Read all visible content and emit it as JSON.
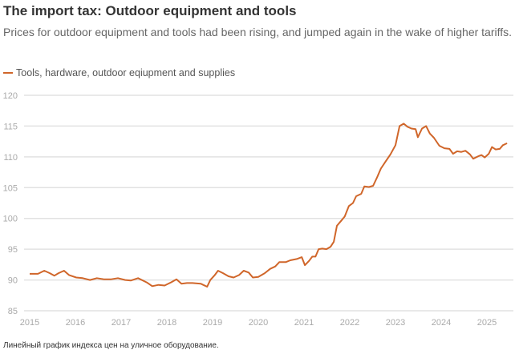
{
  "title": "The import tax: Outdoor equipment and tools",
  "subtitle": "Prices for outdoor equipment and tools had been rising, and jumped again in the wake of higher tariffs.",
  "footnote": "Линейный график индекса цен на уличное оборудование.",
  "colors": {
    "line": "#d0662a",
    "grid": "#e2e2e2",
    "tick": "#aaaaaa"
  },
  "chart_data": {
    "type": "line",
    "title": "The import tax: Outdoor equipment and tools",
    "xlabel": "",
    "ylabel": "",
    "ylim": [
      85,
      120
    ],
    "xlim": [
      2015,
      2025.5
    ],
    "yticks": [
      "85",
      "90",
      "95",
      "100",
      "105",
      "110",
      "115",
      "120"
    ],
    "xticks": [
      "2015",
      "2016",
      "2017",
      "2018",
      "2019",
      "2020",
      "2021",
      "2022",
      "2023",
      "2024",
      "2025"
    ],
    "grid": true,
    "legend_position": "top-left",
    "series": [
      {
        "name": "Tools, hardware, outdoor eqiupment and supplies",
        "x": [
          2015.0,
          2015.18,
          2015.32,
          2015.44,
          2015.54,
          2015.63,
          2015.75,
          2015.86,
          2016.02,
          2016.16,
          2016.32,
          2016.47,
          2016.63,
          2016.77,
          2016.93,
          2017.09,
          2017.21,
          2017.37,
          2017.56,
          2017.68,
          2017.82,
          2017.95,
          2018.09,
          2018.21,
          2018.32,
          2018.44,
          2018.56,
          2018.74,
          2018.88,
          2018.95,
          2019.05,
          2019.12,
          2019.23,
          2019.35,
          2019.46,
          2019.58,
          2019.68,
          2019.79,
          2019.88,
          2020.0,
          2020.14,
          2020.26,
          2020.37,
          2020.46,
          2020.6,
          2020.7,
          2020.84,
          2020.95,
          2021.02,
          2021.11,
          2021.18,
          2021.25,
          2021.32,
          2021.4,
          2021.49,
          2021.58,
          2021.65,
          2021.72,
          2021.81,
          2021.89,
          2021.98,
          2022.07,
          2022.14,
          2022.25,
          2022.32,
          2022.42,
          2022.51,
          2022.6,
          2022.68,
          2022.79,
          2022.89,
          2023.0,
          2023.09,
          2023.18,
          2023.26,
          2023.35,
          2023.44,
          2023.49,
          2023.58,
          2023.67,
          2023.75,
          2023.84,
          2023.96,
          2024.07,
          2024.18,
          2024.26,
          2024.35,
          2024.44,
          2024.53,
          2024.63,
          2024.7,
          2024.81,
          2024.88,
          2024.95,
          2025.04,
          2025.11,
          2025.19,
          2025.28,
          2025.35,
          2025.44
        ],
        "values": [
          91.0,
          91.0,
          91.5,
          91.1,
          90.7,
          91.1,
          91.5,
          90.8,
          90.4,
          90.3,
          90.0,
          90.3,
          90.1,
          90.1,
          90.3,
          90.0,
          89.9,
          90.3,
          89.6,
          89.0,
          89.2,
          89.1,
          89.6,
          90.1,
          89.4,
          89.5,
          89.5,
          89.4,
          88.9,
          90.0,
          90.8,
          91.5,
          91.1,
          90.6,
          90.4,
          90.8,
          91.5,
          91.2,
          90.4,
          90.5,
          91.1,
          91.8,
          92.2,
          92.9,
          92.9,
          93.2,
          93.4,
          93.7,
          92.4,
          93.1,
          93.8,
          93.8,
          95.0,
          95.1,
          95.0,
          95.4,
          96.2,
          98.8,
          99.6,
          100.3,
          102.0,
          102.5,
          103.6,
          104.0,
          105.2,
          105.1,
          105.3,
          106.7,
          108.1,
          109.3,
          110.4,
          111.9,
          115.0,
          115.4,
          114.9,
          114.6,
          114.5,
          113.2,
          114.6,
          115.0,
          113.8,
          113.1,
          111.8,
          111.4,
          111.3,
          110.5,
          110.9,
          110.8,
          111.0,
          110.4,
          109.7,
          110.1,
          110.3,
          109.9,
          110.5,
          111.6,
          111.2,
          111.3,
          111.9,
          112.2
        ]
      }
    ]
  }
}
